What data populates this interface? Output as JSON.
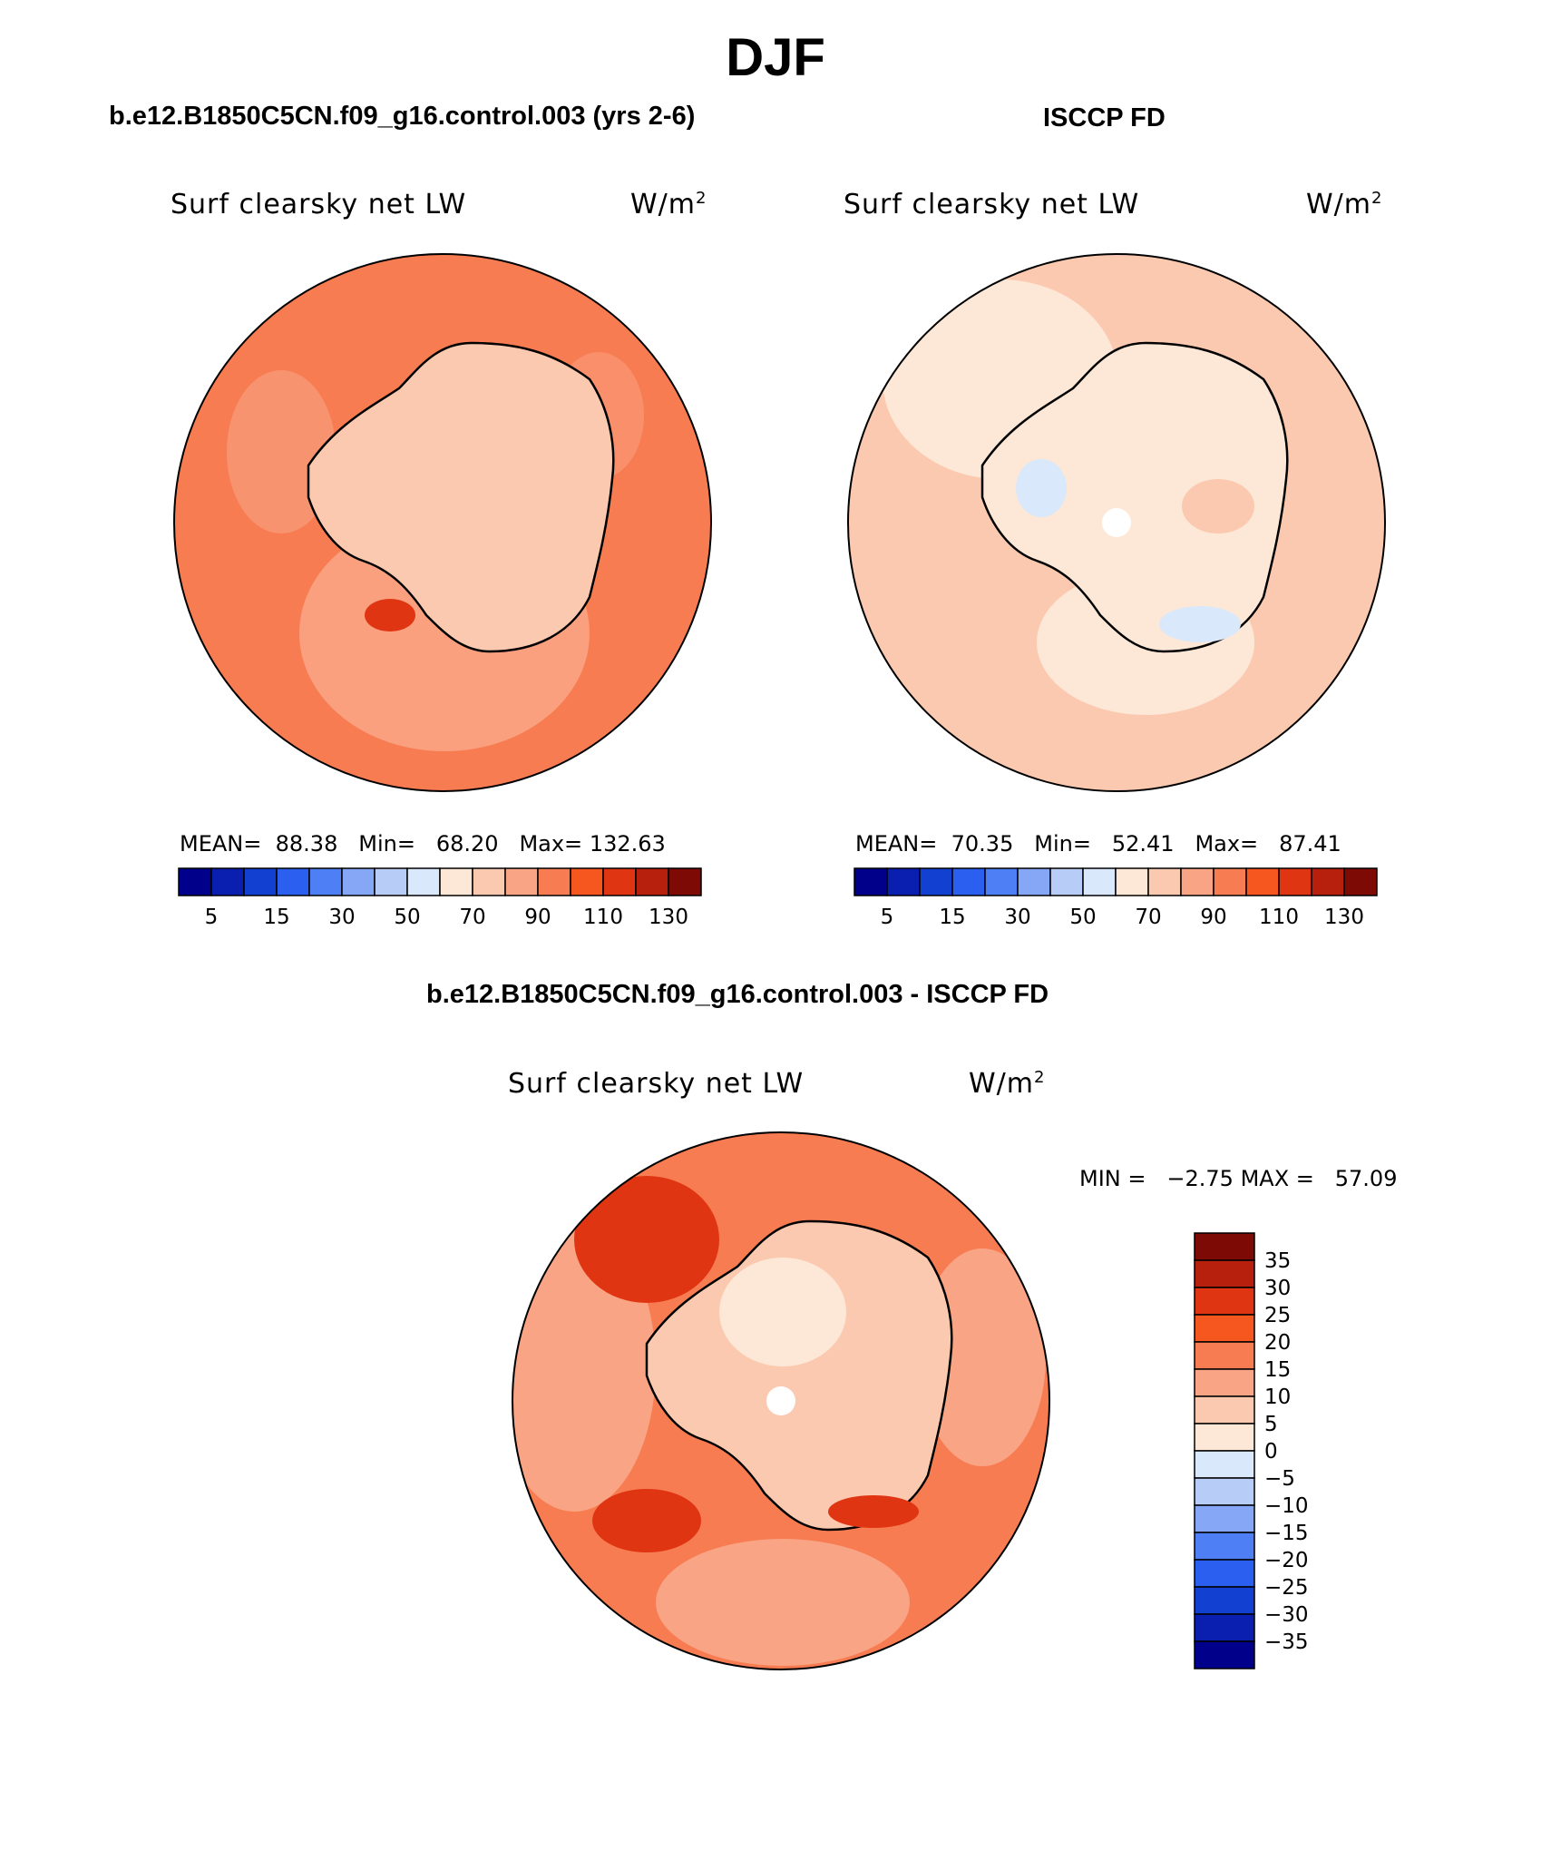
{
  "figure": {
    "season": "DJF",
    "case_title": "b.e12.B1850C5CN.f09_g16.control.003 (yrs 2-6)",
    "obs_title": "ISCCP FD",
    "diff_title": "b.e12.B1850C5CN.f09_g16.control.003 - ISCCP FD"
  },
  "panels": {
    "model": {
      "variable": "Surf clearsky net LW",
      "units": "W/m",
      "units_exp": "2",
      "mean_label": "MEAN=",
      "mean": "88.38",
      "min_label": "Min=",
      "min": "68.20",
      "max_label": "Max=",
      "max": "132.63"
    },
    "obs": {
      "variable": "Surf clearsky net LW",
      "units": "W/m",
      "units_exp": "2",
      "mean_label": "MEAN=",
      "mean": "70.35",
      "min_label": "Min=",
      "min": "52.41",
      "max_label": "Max=",
      "max": "87.41"
    },
    "diff": {
      "variable": "Surf clearsky net LW",
      "units": "W/m",
      "units_exp": "2",
      "min_label": "MIN =",
      "min": "−2.75",
      "max_label": "MAX =",
      "max": "57.09"
    }
  },
  "colorbars": {
    "abs": {
      "colors": [
        "#00008b",
        "#0a1fb0",
        "#1240d0",
        "#2a5ff0",
        "#4f7ff5",
        "#86a7f6",
        "#b8ccf8",
        "#dae8fb",
        "#fde7d6",
        "#fbc9b0",
        "#f9a484",
        "#f87c52",
        "#f5571e",
        "#e03512",
        "#b8200e",
        "#7e0a05"
      ],
      "tick_labels": [
        "5",
        "15",
        "30",
        "50",
        "70",
        "90",
        "110",
        "130"
      ]
    },
    "diff": {
      "colors": [
        "#00008b",
        "#0a1fb0",
        "#1240d0",
        "#2a5ff0",
        "#4f7ff5",
        "#86a7f6",
        "#b8ccf8",
        "#dae8fb",
        "#fde7d6",
        "#fbc9b0",
        "#f9a484",
        "#f87c52",
        "#f5571e",
        "#e03512",
        "#b8200e",
        "#7e0a05"
      ],
      "tick_labels": [
        "35",
        "30",
        "25",
        "20",
        "15",
        "10",
        "5",
        "0",
        "−5",
        "−10",
        "−15",
        "−20",
        "−25",
        "−30",
        "−35"
      ]
    }
  }
}
